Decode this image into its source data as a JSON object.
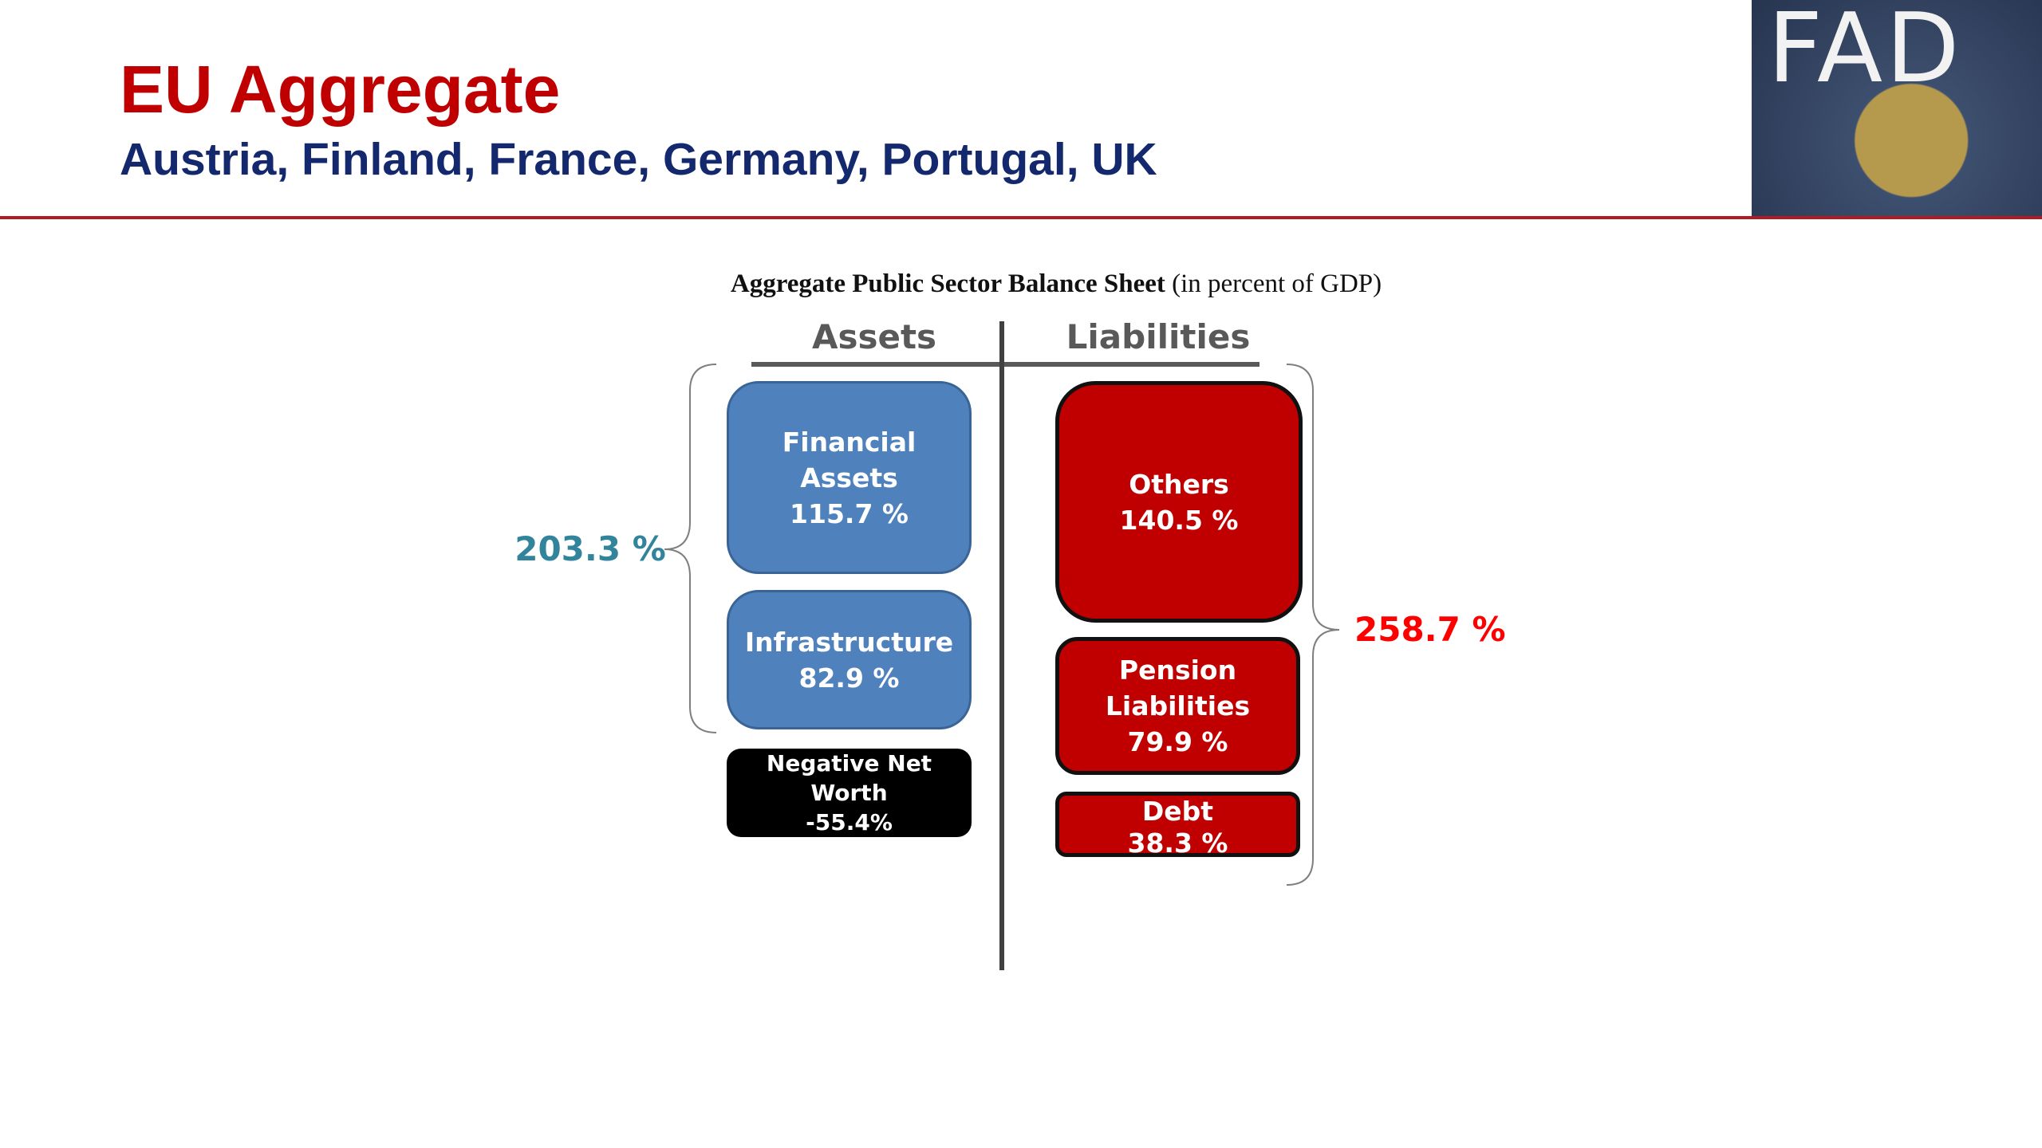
{
  "header": {
    "title": "EU Aggregate",
    "subtitle": "Austria, Finland, France, Germany, Portugal, UK",
    "logo": "FAD"
  },
  "diagram": {
    "title": "Aggregate Public Sector Balance Sheet",
    "title_note": "(in percent of GDP)",
    "assets": {
      "heading": "Assets",
      "total": "203.3 %",
      "items": [
        {
          "label": "Financial Assets",
          "value": "115.7 %"
        },
        {
          "label": "Infrastructure",
          "value": "82.9 %"
        }
      ],
      "negative_net_worth": {
        "label": "Negative Net Worth",
        "value": "-55.4%"
      }
    },
    "liabilities": {
      "heading": "Liabilities",
      "total": "258.7 %",
      "items": [
        {
          "label": "Others",
          "value": "140.5 %"
        },
        {
          "label": "Pension Liabilities",
          "value": "79.9 %"
        },
        {
          "label": "Debt",
          "value": "38.3 %"
        }
      ]
    }
  }
}
